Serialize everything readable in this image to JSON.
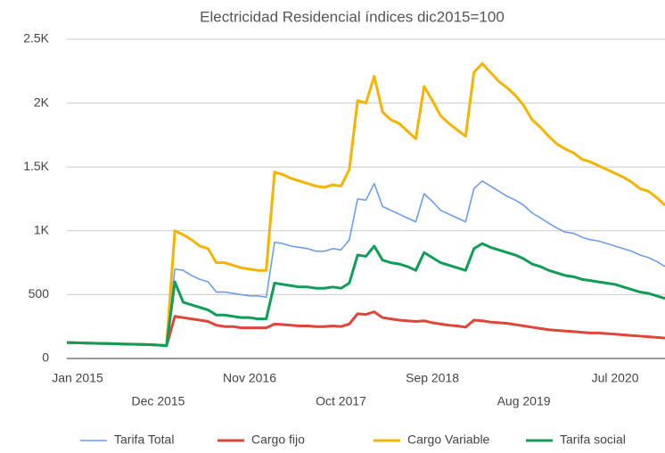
{
  "chart_data": {
    "type": "line",
    "title": "Electricidad Residencial  índices dic2015=100",
    "categories": [
      "Jan 2015",
      null,
      null,
      null,
      null,
      null,
      null,
      null,
      null,
      null,
      null,
      "Dec 2015",
      null,
      null,
      null,
      null,
      null,
      null,
      null,
      null,
      null,
      null,
      "Nov 2016",
      null,
      null,
      null,
      null,
      null,
      null,
      null,
      null,
      null,
      null,
      "Oct 2017",
      null,
      null,
      null,
      null,
      null,
      null,
      null,
      null,
      null,
      null,
      "Sep 2018",
      null,
      null,
      null,
      null,
      null,
      null,
      null,
      null,
      null,
      null,
      "Aug 2019",
      null,
      null,
      null,
      null,
      null,
      null,
      null,
      null,
      null,
      null,
      "Jul 2020",
      null,
      null,
      null,
      null,
      null,
      null
    ],
    "series": [
      {
        "name": "Tarifa Total",
        "color": "#6d9eeb",
        "values": [
          125,
          123,
          121,
          120,
          118,
          117,
          115,
          113,
          112,
          110,
          108,
          105,
          100,
          700,
          690,
          650,
          620,
          600,
          520,
          520,
          510,
          500,
          490,
          490,
          480,
          910,
          900,
          880,
          870,
          860,
          840,
          840,
          860,
          850,
          930,
          1250,
          1240,
          1370,
          1190,
          1160,
          1130,
          1100,
          1070,
          1290,
          1230,
          1160,
          1130,
          1100,
          1070,
          1330,
          1390,
          1350,
          1310,
          1270,
          1240,
          1200,
          1140,
          1100,
          1060,
          1020,
          990,
          980,
          950,
          930,
          920,
          900,
          880,
          860,
          840,
          810,
          790,
          760,
          720
        ]
      },
      {
        "name": "Cargo fijo",
        "color": "#e0453a",
        "values": [
          125,
          123,
          121,
          120,
          118,
          117,
          115,
          113,
          112,
          110,
          108,
          105,
          100,
          330,
          320,
          310,
          300,
          290,
          260,
          250,
          250,
          240,
          240,
          240,
          240,
          270,
          265,
          260,
          255,
          255,
          250,
          250,
          255,
          250,
          270,
          350,
          345,
          365,
          320,
          310,
          300,
          295,
          290,
          295,
          280,
          270,
          260,
          255,
          245,
          300,
          295,
          285,
          280,
          275,
          265,
          255,
          245,
          235,
          225,
          220,
          215,
          210,
          205,
          200,
          200,
          195,
          190,
          185,
          180,
          175,
          170,
          165,
          160
        ]
      },
      {
        "name": "Cargo Variable",
        "color": "#f4b400",
        "values": [
          125,
          123,
          121,
          120,
          118,
          117,
          115,
          113,
          112,
          110,
          108,
          105,
          100,
          1000,
          970,
          930,
          880,
          860,
          750,
          750,
          730,
          710,
          700,
          690,
          690,
          1460,
          1440,
          1410,
          1390,
          1370,
          1350,
          1340,
          1360,
          1350,
          1480,
          2020,
          2000,
          2210,
          1930,
          1870,
          1840,
          1780,
          1720,
          2130,
          2020,
          1900,
          1840,
          1790,
          1740,
          2240,
          2310,
          2240,
          2170,
          2120,
          2060,
          1980,
          1870,
          1810,
          1740,
          1680,
          1640,
          1610,
          1560,
          1540,
          1510,
          1480,
          1450,
          1420,
          1380,
          1330,
          1310,
          1260,
          1200
        ]
      },
      {
        "name": "Tarifa social",
        "color": "#0f9d58",
        "values": [
          125,
          123,
          121,
          120,
          118,
          117,
          115,
          113,
          112,
          110,
          108,
          105,
          100,
          600,
          440,
          420,
          400,
          380,
          340,
          340,
          330,
          320,
          320,
          310,
          310,
          590,
          580,
          570,
          560,
          560,
          550,
          550,
          560,
          550,
          590,
          810,
          800,
          880,
          770,
          750,
          740,
          720,
          690,
          830,
          790,
          750,
          730,
          710,
          690,
          860,
          900,
          870,
          850,
          830,
          810,
          780,
          740,
          720,
          690,
          670,
          650,
          640,
          620,
          610,
          600,
          590,
          580,
          560,
          540,
          520,
          510,
          490,
          470
        ]
      }
    ],
    "ylim": [
      0,
      2500
    ],
    "yticks": [
      0,
      500,
      {
        "value": 1000,
        "label": "1K"
      },
      {
        "value": 1500,
        "label": "1.5K"
      },
      {
        "value": 2000,
        "label": "2K"
      },
      {
        "value": 2500,
        "label": "2.5K"
      }
    ],
    "grid": true,
    "legend": "bottom"
  }
}
